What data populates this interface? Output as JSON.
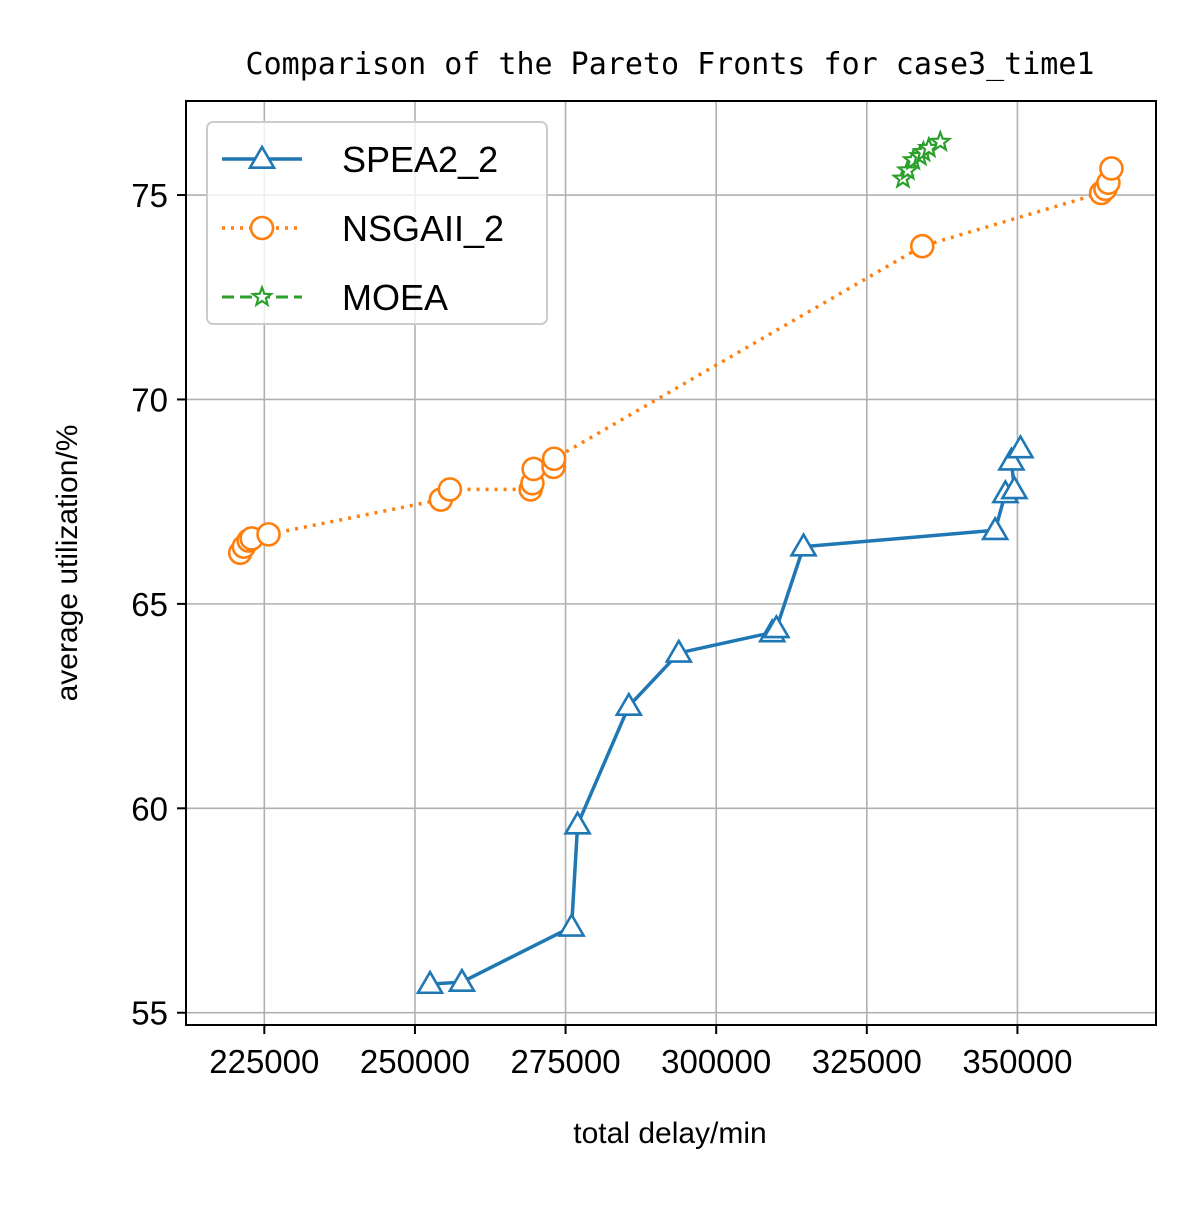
{
  "chart_data": {
    "type": "line",
    "title": "Comparison of the Pareto Fronts for case3_time1",
    "xlabel": "total delay/min",
    "ylabel": "average utilization/%",
    "xlim": [
      212000,
      373000
    ],
    "ylim": [
      54.7,
      77.3
    ],
    "xticks": [
      225000,
      250000,
      275000,
      300000,
      325000,
      350000
    ],
    "xtick_labels": [
      "225000",
      "250000",
      "275000",
      "300000",
      "325000",
      "350000"
    ],
    "yticks": [
      55,
      60,
      65,
      70,
      75
    ],
    "ytick_labels": [
      "55",
      "60",
      "65",
      "70",
      "75"
    ],
    "grid": true,
    "legend_position": "top-left",
    "series": [
      {
        "name": "SPEA2_2",
        "color": "#1f77b4",
        "marker": "triangle",
        "line_style": "solid",
        "x": [
          252500,
          257800,
          276000,
          277000,
          285500,
          293800,
          309300,
          310000,
          314500,
          346300,
          348000,
          349500,
          349000,
          350500
        ],
        "y": [
          55.7,
          55.75,
          57.1,
          59.6,
          62.5,
          63.8,
          64.3,
          64.4,
          66.4,
          66.8,
          67.7,
          67.8,
          68.5,
          68.8
        ]
      },
      {
        "name": "NSGAII_2",
        "color": "#ff7f0e",
        "marker": "circle",
        "line_style": "dotted",
        "x": [
          221000,
          221600,
          222400,
          222900,
          225700,
          254300,
          255800,
          269200,
          269500,
          269700,
          273000,
          273100,
          334200,
          363900,
          364600,
          365100,
          365600
        ],
        "y": [
          66.25,
          66.4,
          66.55,
          66.6,
          66.7,
          67.55,
          67.8,
          67.8,
          67.95,
          68.3,
          68.35,
          68.55,
          73.75,
          75.05,
          75.15,
          75.3,
          75.65
        ]
      },
      {
        "name": "MOEA",
        "color": "#2ca02c",
        "marker": "star",
        "line_style": "dashed",
        "x": [
          331000,
          331800,
          332700,
          333800,
          334400,
          335300,
          337200
        ],
        "y": [
          75.4,
          75.6,
          75.85,
          75.95,
          76.05,
          76.15,
          76.3
        ]
      }
    ]
  }
}
